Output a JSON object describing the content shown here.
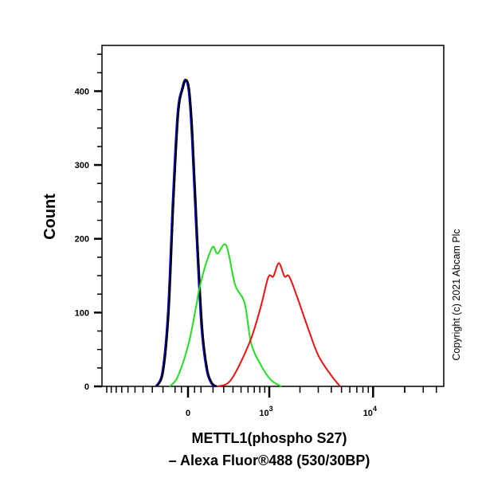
{
  "chart_data": {
    "type": "line",
    "title": "",
    "xlabel_lines": [
      "METTL1(phospho S27)",
      "– Alexa Fluor®488 (530/30BP)"
    ],
    "ylabel": "Count",
    "x_scale": "biexponential",
    "xlim": [
      -1100,
      47000
    ],
    "ylim": [
      0,
      462
    ],
    "y_ticks": [
      0,
      100,
      200,
      300,
      400
    ],
    "y_tick_labels": [
      "0",
      "100",
      "200",
      "300",
      "400"
    ],
    "x_tick_labels": [
      {
        "value": 0,
        "base": "0",
        "exp": ""
      },
      {
        "value": 1000,
        "base": "10",
        "exp": "3"
      },
      {
        "value": 10000,
        "base": "10",
        "exp": "4"
      }
    ],
    "grid": false,
    "annotation": "Copyright (c) 2021 Abcam Plc",
    "series": [
      {
        "color": "#0000cc",
        "points": [
          [
            -255,
            0
          ],
          [
            -197,
            20
          ],
          [
            -150,
            100
          ],
          [
            -111,
            250
          ],
          [
            -73,
            370
          ],
          [
            -36,
            405
          ],
          [
            -12,
            415
          ],
          [
            12,
            400
          ],
          [
            36,
            340
          ],
          [
            73,
            200
          ],
          [
            111,
            80
          ],
          [
            150,
            25
          ],
          [
            190,
            5
          ],
          [
            232,
            0
          ]
        ]
      },
      {
        "color": "#000000",
        "points": [
          [
            -255,
            0
          ],
          [
            -197,
            20
          ],
          [
            -150,
            100
          ],
          [
            -111,
            250
          ],
          [
            -73,
            370
          ],
          [
            -36,
            405
          ],
          [
            -12,
            415
          ],
          [
            12,
            400
          ],
          [
            36,
            340
          ],
          [
            73,
            200
          ],
          [
            111,
            80
          ],
          [
            150,
            25
          ],
          [
            190,
            5
          ],
          [
            232,
            0
          ]
        ]
      },
      {
        "color": "#22dd22",
        "points": [
          [
            -143,
            0
          ],
          [
            -79,
            13
          ],
          [
            6,
            59
          ],
          [
            67,
            113
          ],
          [
            85,
            131
          ],
          [
            136,
            164
          ],
          [
            197,
            189
          ],
          [
            240,
            180
          ],
          [
            326,
            191
          ],
          [
            424,
            138
          ],
          [
            549,
            113
          ],
          [
            647,
            59
          ],
          [
            812,
            30
          ],
          [
            1034,
            9
          ],
          [
            1315,
            0
          ]
        ]
      },
      {
        "color": "#ee1111",
        "points": [
          [
            240,
            0
          ],
          [
            378,
            9
          ],
          [
            621,
            59
          ],
          [
            812,
            106
          ],
          [
            978,
            148
          ],
          [
            1097,
            149
          ],
          [
            1246,
            167
          ],
          [
            1416,
            149
          ],
          [
            1572,
            149
          ],
          [
            1881,
            121
          ],
          [
            2405,
            78
          ],
          [
            3026,
            41
          ],
          [
            4081,
            13
          ],
          [
            4854,
            0
          ]
        ]
      }
    ]
  }
}
